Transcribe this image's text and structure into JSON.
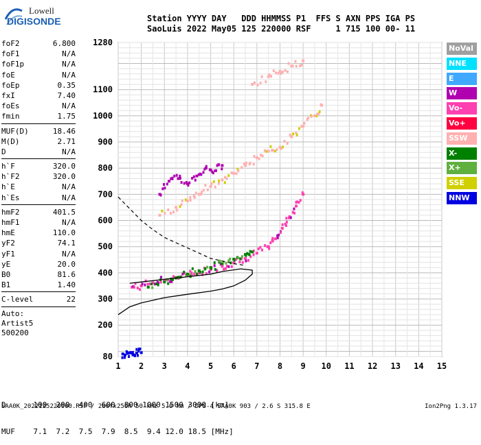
{
  "logo": {
    "line1": "Lowell",
    "line2": "DIGISONDE"
  },
  "header": {
    "line1": "Station YYYY DAY   DDD HHMMSS P1  FFS S AXN PPS IGA PS",
    "line2": "SaoLuis 2022 May05 125 220000 RSF     1 715 100 00- 11"
  },
  "params_group1": [
    {
      "name": "foF2",
      "value": "6.800"
    },
    {
      "name": "foF1",
      "value": "N/A"
    },
    {
      "name": "foF1p",
      "value": "N/A"
    },
    {
      "name": "foE",
      "value": "N/A"
    },
    {
      "name": "foEp",
      "value": "0.35"
    },
    {
      "name": "fxI",
      "value": "7.40"
    },
    {
      "name": "foEs",
      "value": "N/A"
    },
    {
      "name": "fmin",
      "value": "1.75"
    }
  ],
  "params_group2": [
    {
      "name": "MUF(D)",
      "value": "18.46"
    },
    {
      "name": "M(D)",
      "value": "2.71"
    },
    {
      "name": "D",
      "value": "N/A"
    }
  ],
  "params_group3": [
    {
      "name": "h`F",
      "value": "320.0"
    },
    {
      "name": "h`F2",
      "value": "320.0"
    },
    {
      "name": "h`E",
      "value": "N/A"
    },
    {
      "name": "h`Es",
      "value": "N/A"
    }
  ],
  "params_group4": [
    {
      "name": "hmF2",
      "value": "401.5"
    },
    {
      "name": "hmF1",
      "value": "N/A"
    },
    {
      "name": "hmE",
      "value": "110.0"
    },
    {
      "name": "yF2",
      "value": "74.1"
    },
    {
      "name": "yF1",
      "value": "N/A"
    },
    {
      "name": "yE",
      "value": "20.0"
    },
    {
      "name": "B0",
      "value": "81.6"
    },
    {
      "name": "B1",
      "value": "1.40"
    }
  ],
  "params_group5": [
    {
      "name": "C-level",
      "value": "22"
    }
  ],
  "bottom_info": {
    "auto_label": "Auto:",
    "artist": "Artist5",
    "code": "500200"
  },
  "legend": [
    {
      "label": "NoVal",
      "color": "#a0a0a0"
    },
    {
      "label": "NNE",
      "color": "#00e0ff"
    },
    {
      "label": "E",
      "color": "#40a8ff"
    },
    {
      "label": "W",
      "color": "#b000b0"
    },
    {
      "label": "Vo-",
      "color": "#ff40b0"
    },
    {
      "label": "Vo+",
      "color": "#ff0040"
    },
    {
      "label": "SSW",
      "color": "#ffb0b0"
    },
    {
      "label": "X-",
      "color": "#008000"
    },
    {
      "label": "X+",
      "color": "#60b040"
    },
    {
      "label": "SSE",
      "color": "#d0d000"
    },
    {
      "label": "NNW",
      "color": "#0000e0"
    }
  ],
  "muf_table": {
    "d_label": "D",
    "d_values": [
      "100",
      "200",
      "400",
      "600",
      "800",
      "1000",
      "1500",
      "3000"
    ],
    "d_unit": "[km]",
    "muf_label": "MUF",
    "muf_values": [
      "7.1",
      "7.2",
      "7.5",
      "7.9",
      "8.5",
      "9.4",
      "12.0",
      "18.5"
    ],
    "muf_unit": "[MHz]"
  },
  "footer": {
    "left": "SAA0K_2022125220000.RSF / 280fx256h 50 kHz 5.0 km / DPS-4 SAA0K 903 / 2.6 S 315.8 E",
    "right": "Ion2Png 1.3.17"
  },
  "chart_data": {
    "type": "scatter",
    "title": "",
    "xlabel": "",
    "ylabel": "",
    "xlim": [
      1,
      15
    ],
    "ylim": [
      80,
      1280
    ],
    "x_ticks": [
      "1",
      "2",
      "3",
      "4",
      "5",
      "6",
      "7",
      "8",
      "9",
      "10",
      "11",
      "12",
      "13",
      "14",
      "15"
    ],
    "y_ticks": [
      "80",
      "200",
      "300",
      "400",
      "500",
      "600",
      "700",
      "800",
      "900",
      "1000",
      "1100",
      "1280"
    ],
    "grid": true,
    "traces": [
      {
        "name": "O-trace",
        "color_key": "Vo-",
        "points": [
          [
            1.6,
            345
          ],
          [
            2.0,
            350
          ],
          [
            2.5,
            362
          ],
          [
            3.0,
            372
          ],
          [
            3.5,
            382
          ],
          [
            4.0,
            392
          ],
          [
            4.5,
            402
          ],
          [
            5.0,
            412
          ],
          [
            5.5,
            425
          ],
          [
            6.0,
            438
          ],
          [
            6.5,
            455
          ],
          [
            7.0,
            475
          ],
          [
            7.5,
            500
          ],
          [
            7.8,
            530
          ],
          [
            8.1,
            570
          ],
          [
            8.4,
            610
          ],
          [
            8.7,
            655
          ],
          [
            9.0,
            700
          ]
        ]
      },
      {
        "name": "X-trace",
        "color_key": "X-",
        "points": [
          [
            2.3,
            345
          ],
          [
            3.0,
            365
          ],
          [
            3.5,
            380
          ],
          [
            4.0,
            395
          ],
          [
            4.5,
            408
          ],
          [
            5.0,
            420
          ],
          [
            5.5,
            435
          ],
          [
            6.0,
            452
          ],
          [
            6.5,
            470
          ],
          [
            6.8,
            480
          ]
        ]
      },
      {
        "name": "2nd-hop",
        "color_key": "SSW",
        "points": [
          [
            2.8,
            620
          ],
          [
            3.5,
            650
          ],
          [
            4.0,
            675
          ],
          [
            4.5,
            700
          ],
          [
            5.0,
            730
          ],
          [
            5.5,
            755
          ],
          [
            6.0,
            780
          ],
          [
            6.5,
            810
          ],
          [
            7.0,
            840
          ],
          [
            7.5,
            865
          ],
          [
            8.0,
            880
          ],
          [
            8.5,
            920
          ],
          [
            9.0,
            960
          ],
          [
            9.5,
            1000
          ],
          [
            9.8,
            1040
          ]
        ]
      },
      {
        "name": "3rd-hop",
        "color_key": "SSW",
        "points": [
          [
            6.8,
            1120
          ],
          [
            7.5,
            1150
          ],
          [
            8.0,
            1170
          ],
          [
            8.5,
            1190
          ],
          [
            9.0,
            1210
          ]
        ]
      },
      {
        "name": "spread-cluster",
        "color_key": "W",
        "points": [
          [
            2.8,
            700
          ],
          [
            3.2,
            750
          ],
          [
            3.6,
            760
          ],
          [
            4.0,
            740
          ],
          [
            4.4,
            770
          ],
          [
            4.8,
            800
          ],
          [
            5.2,
            790
          ],
          [
            5.5,
            810
          ]
        ]
      },
      {
        "name": "low-echo",
        "color_key": "NNW",
        "points": [
          [
            1.2,
            90
          ],
          [
            1.4,
            92
          ],
          [
            1.6,
            95
          ],
          [
            1.8,
            93
          ],
          [
            2.0,
            95
          ]
        ]
      }
    ],
    "profile_curve": [
      [
        1,
        240
      ],
      [
        1.5,
        270
      ],
      [
        2,
        285
      ],
      [
        3,
        305
      ],
      [
        4,
        318
      ],
      [
        5,
        330
      ],
      [
        5.5,
        338
      ],
      [
        6,
        350
      ],
      [
        6.5,
        372
      ],
      [
        6.8,
        395
      ],
      [
        6.8,
        410
      ],
      [
        6.3,
        415
      ],
      [
        5.5,
        405
      ],
      [
        5,
        395
      ],
      [
        4.5,
        390
      ],
      [
        4,
        385
      ],
      [
        3.5,
        380
      ],
      [
        3,
        375
      ],
      [
        2.5,
        370
      ],
      [
        2,
        365
      ],
      [
        1.5,
        360
      ]
    ],
    "upper_dashed": [
      [
        1,
        690
      ],
      [
        1.5,
        645
      ],
      [
        2,
        600
      ],
      [
        2.5,
        565
      ],
      [
        3,
        535
      ],
      [
        3.5,
        515
      ],
      [
        4,
        495
      ],
      [
        4.5,
        475
      ],
      [
        5,
        455
      ],
      [
        5.5,
        445
      ],
      [
        6,
        435
      ],
      [
        6.5,
        428
      ]
    ]
  }
}
